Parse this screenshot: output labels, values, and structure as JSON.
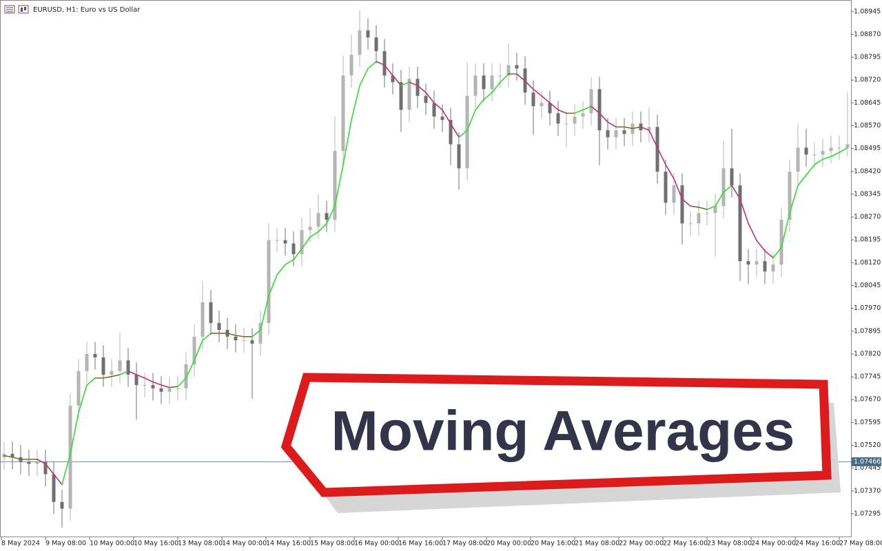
{
  "chart_data": {
    "type": "candlestick",
    "title": "EURUSD, H1:  Euro vs US Dollar",
    "annotation": "Moving Averages",
    "xlim": [
      0,
      308.25
    ],
    "ylim": [
      1.07218,
      1.08983
    ],
    "xticks": [
      {
        "value": 0,
        "label": "8 May 2024"
      },
      {
        "value": 16,
        "label": "9 May 08:00"
      },
      {
        "value": 32,
        "label": "10 May 00:00"
      },
      {
        "value": 48,
        "label": "10 May 16:00"
      },
      {
        "value": 64,
        "label": "13 May 08:00"
      },
      {
        "value": 80,
        "label": "14 May 00:00"
      },
      {
        "value": 96,
        "label": "14 May 16:00"
      },
      {
        "value": 112,
        "label": "15 May 08:00"
      },
      {
        "value": 128,
        "label": "16 May 00:00"
      },
      {
        "value": 144,
        "label": "16 May 16:00"
      },
      {
        "value": 160,
        "label": "17 May 08:00"
      },
      {
        "value": 176,
        "label": "20 May 00:00"
      },
      {
        "value": 192,
        "label": "20 May 16:00"
      },
      {
        "value": 208,
        "label": "21 May 08:00"
      },
      {
        "value": 224,
        "label": "22 May 00:00"
      },
      {
        "value": 240,
        "label": "22 May 16:00"
      },
      {
        "value": 256,
        "label": "23 May 08:00"
      },
      {
        "value": 272,
        "label": "24 May 00:00"
      },
      {
        "value": 288,
        "label": "24 May 16:00"
      },
      {
        "value": 304,
        "label": "27 May 08:00"
      }
    ],
    "yticks": [
      {
        "value": 1.08945,
        "label": "1.08945"
      },
      {
        "value": 1.0887,
        "label": "1.08870"
      },
      {
        "value": 1.08795,
        "label": "1.08795"
      },
      {
        "value": 1.0872,
        "label": "1.08720"
      },
      {
        "value": 1.08645,
        "label": "1.08645"
      },
      {
        "value": 1.0857,
        "label": "1.08570"
      },
      {
        "value": 1.08495,
        "label": "1.08495"
      },
      {
        "value": 1.0842,
        "label": "1.08420"
      },
      {
        "value": 1.08345,
        "label": "1.08345"
      },
      {
        "value": 1.0827,
        "label": "1.08270"
      },
      {
        "value": 1.08195,
        "label": "1.08195"
      },
      {
        "value": 1.0812,
        "label": "1.08120"
      },
      {
        "value": 1.08045,
        "label": "1.08045"
      },
      {
        "value": 1.0797,
        "label": "1.07970"
      },
      {
        "value": 1.07895,
        "label": "1.07895"
      },
      {
        "value": 1.0782,
        "label": "1.07820"
      },
      {
        "value": 1.07745,
        "label": "1.07745"
      },
      {
        "value": 1.0767,
        "label": "1.07670"
      },
      {
        "value": 1.07595,
        "label": "1.07595"
      },
      {
        "value": 1.0752,
        "label": "1.07520"
      },
      {
        "value": 1.07445,
        "label": "1.07445"
      },
      {
        "value": 1.0737,
        "label": "1.07370"
      },
      {
        "value": 1.07295,
        "label": "1.07295"
      }
    ],
    "current_price": 1.07466,
    "current_price_color": "#4a6a8a",
    "up_color": "#b4b4b4",
    "down_color": "#707070",
    "x": [
      1,
      4,
      7,
      10,
      13,
      16,
      19,
      22,
      25,
      28,
      31,
      34,
      37,
      40,
      43,
      46,
      49,
      52,
      55,
      58,
      61,
      64,
      67,
      70,
      73,
      76,
      79,
      82,
      85,
      88,
      91,
      94,
      97,
      100,
      103,
      106,
      109,
      112,
      115,
      118,
      121,
      124,
      127,
      130,
      133,
      136,
      139,
      142,
      145,
      148,
      151,
      154,
      157,
      160,
      163,
      166,
      169,
      172,
      175,
      178,
      181,
      184,
      187,
      190,
      193,
      196,
      199,
      202,
      205,
      208,
      211,
      214,
      217,
      220,
      223,
      226,
      229,
      232,
      235,
      238,
      241,
      244,
      247,
      250,
      253,
      256,
      259,
      262,
      265,
      268,
      271,
      274,
      277,
      280,
      283,
      286,
      289,
      292,
      295,
      298,
      301,
      304,
      307
    ],
    "open": [
      1.0748,
      1.07492,
      1.07481,
      1.07465,
      1.07459,
      1.07465,
      1.07425,
      1.07334,
      1.07312,
      1.0765,
      1.07764,
      1.0782,
      1.07809,
      1.07752,
      1.07764,
      1.07799,
      1.07752,
      1.07718,
      1.07718,
      1.07707,
      1.07696,
      1.07707,
      1.07707,
      1.07786,
      1.07877,
      1.0799,
      1.07922,
      1.07899,
      1.07877,
      1.07865,
      1.07865,
      1.07854,
      1.07922,
      1.08194,
      1.08194,
      1.08183,
      1.08148,
      1.08227,
      1.08238,
      1.08283,
      1.08261,
      1.08487,
      1.08735,
      1.08803,
      1.08883,
      1.0886,
      1.08815,
      1.08735,
      1.08713,
      1.08622,
      1.08724,
      1.08668,
      1.08645,
      1.086,
      1.08589,
      1.08509,
      1.0843,
      1.08668,
      1.08735,
      1.0869,
      1.08735,
      1.08735,
      1.08769,
      1.08758,
      1.08679,
      1.08634,
      1.08645,
      1.08611,
      1.08577,
      1.08577,
      1.086,
      1.08611,
      1.0869,
      1.08555,
      1.08532,
      1.08555,
      1.08543,
      1.08577,
      1.08555,
      1.08566,
      1.08419,
      1.08317,
      1.08374,
      1.08249,
      1.08249,
      1.08283,
      1.08283,
      1.08306,
      1.0843,
      1.08374,
      1.08125,
      1.08114,
      1.08125,
      1.08091,
      1.08114,
      1.08261,
      1.08419,
      1.08498,
      1.08475,
      1.08475,
      1.08487,
      1.08498,
      1.08498
    ],
    "high": [
      1.07532,
      1.07532,
      1.07521,
      1.07505,
      1.07505,
      1.07505,
      1.07465,
      1.07374,
      1.0769,
      1.07804,
      1.0786,
      1.0786,
      1.07849,
      1.07804,
      1.0789,
      1.07839,
      1.07792,
      1.07758,
      1.07758,
      1.07747,
      1.07747,
      1.07747,
      1.07826,
      1.07917,
      1.0806,
      1.0803,
      1.07962,
      1.07939,
      1.07917,
      1.07905,
      1.07905,
      1.07962,
      1.0825,
      1.08234,
      1.08234,
      1.08223,
      1.08267,
      1.083,
      1.08345,
      1.08323,
      1.086,
      1.088,
      1.0887,
      1.0895,
      1.08923,
      1.089,
      1.08855,
      1.08775,
      1.08753,
      1.08764,
      1.08764,
      1.08708,
      1.08685,
      1.0864,
      1.08629,
      1.08549,
      1.0878,
      1.08775,
      1.08775,
      1.08775,
      1.08775,
      1.0884,
      1.08809,
      1.08798,
      1.08719,
      1.08685,
      1.08685,
      1.08651,
      1.08617,
      1.0864,
      1.08651,
      1.0873,
      1.0873,
      1.08595,
      1.08595,
      1.08595,
      1.08617,
      1.08617,
      1.0863,
      1.08606,
      1.08459,
      1.08414,
      1.08414,
      1.08289,
      1.08323,
      1.08323,
      1.08346,
      1.0852,
      1.0856,
      1.08414,
      1.08165,
      1.08165,
      1.08165,
      1.08154,
      1.08301,
      1.08459,
      1.08575,
      1.0856,
      1.08515,
      1.08527,
      1.08538,
      1.08538,
      1.0868
    ],
    "low": [
      1.0744,
      1.07441,
      1.07425,
      1.07419,
      1.07419,
      1.07385,
      1.07294,
      1.0725,
      1.07272,
      1.0761,
      1.07724,
      1.07769,
      1.07712,
      1.07712,
      1.07724,
      1.07712,
      1.07605,
      1.07678,
      1.07667,
      1.07656,
      1.07656,
      1.07667,
      1.07667,
      1.07746,
      1.07837,
      1.07882,
      1.07859,
      1.07837,
      1.07825,
      1.07825,
      1.07673,
      1.07814,
      1.07882,
      1.08154,
      1.08143,
      1.08108,
      1.08108,
      1.08187,
      1.08198,
      1.08221,
      1.08221,
      1.08447,
      1.08695,
      1.08763,
      1.0882,
      1.08775,
      1.08695,
      1.08673,
      1.0855,
      1.08582,
      1.08628,
      1.08605,
      1.0856,
      1.08549,
      1.0844,
      1.0836,
      1.0839,
      1.08628,
      1.0865,
      1.0865,
      1.08695,
      1.08695,
      1.08718,
      1.08639,
      1.0854,
      1.08594,
      1.08571,
      1.08537,
      1.085,
      1.08537,
      1.0856,
      1.08571,
      1.0844,
      1.08492,
      1.08492,
      1.08503,
      1.08503,
      1.08515,
      1.08515,
      1.08379,
      1.08277,
      1.08277,
      1.0818,
      1.08209,
      1.08209,
      1.08243,
      1.0814,
      1.08266,
      1.08334,
      1.0806,
      1.0805,
      1.08074,
      1.08051,
      1.08051,
      1.08074,
      1.08221,
      1.08379,
      1.08435,
      1.08435,
      1.08435,
      1.08447,
      1.08458,
      1.08469
    ],
    "close": [
      1.07492,
      1.07481,
      1.07465,
      1.07459,
      1.07465,
      1.07425,
      1.07334,
      1.07312,
      1.0765,
      1.07764,
      1.0782,
      1.07809,
      1.07752,
      1.07764,
      1.07799,
      1.07752,
      1.07718,
      1.07718,
      1.07707,
      1.07696,
      1.07707,
      1.07707,
      1.07786,
      1.07877,
      1.0799,
      1.07922,
      1.07899,
      1.07877,
      1.07865,
      1.07865,
      1.07854,
      1.07922,
      1.08194,
      1.08194,
      1.08183,
      1.08148,
      1.08227,
      1.08238,
      1.08283,
      1.08261,
      1.08487,
      1.08735,
      1.08803,
      1.08883,
      1.0886,
      1.08815,
      1.08735,
      1.08713,
      1.08622,
      1.08724,
      1.08668,
      1.08645,
      1.086,
      1.08589,
      1.08509,
      1.0843,
      1.08668,
      1.08735,
      1.0869,
      1.08735,
      1.08735,
      1.08769,
      1.08758,
      1.08679,
      1.08634,
      1.08645,
      1.08611,
      1.08577,
      1.08577,
      1.086,
      1.08611,
      1.0869,
      1.08555,
      1.08532,
      1.08555,
      1.08543,
      1.08577,
      1.08555,
      1.08566,
      1.08419,
      1.08317,
      1.08374,
      1.08249,
      1.08249,
      1.08283,
      1.08283,
      1.08306,
      1.0843,
      1.08374,
      1.08125,
      1.08114,
      1.08125,
      1.08091,
      1.08114,
      1.08261,
      1.08419,
      1.08498,
      1.08475,
      1.08475,
      1.08487,
      1.08498,
      1.08498,
      1.08509
    ],
    "ma": {
      "up_color": "#2ee02e",
      "down_color": "#c8306c",
      "flat_color": "#7a6a30",
      "values": [
        1.07486,
        1.07481,
        1.07474,
        1.07474,
        1.07474,
        1.07459,
        1.07425,
        1.07391,
        1.07492,
        1.07628,
        1.07718,
        1.07741,
        1.07741,
        1.07746,
        1.07752,
        1.07764,
        1.07752,
        1.07741,
        1.07728,
        1.07718,
        1.0771,
        1.07713,
        1.07741,
        1.07799,
        1.07865,
        1.07888,
        1.07888,
        1.07888,
        1.07881,
        1.07877,
        1.07877,
        1.07899,
        1.08012,
        1.0808,
        1.08114,
        1.0813,
        1.08166,
        1.08204,
        1.08222,
        1.08249,
        1.08306,
        1.08442,
        1.08589,
        1.08702,
        1.08758,
        1.08781,
        1.08769,
        1.08735,
        1.08702,
        1.08713,
        1.08702,
        1.08679,
        1.08645,
        1.08622,
        1.08577,
        1.08532,
        1.08555,
        1.08622,
        1.08656,
        1.08679,
        1.08713,
        1.0874,
        1.0874,
        1.08717,
        1.0869,
        1.08668,
        1.08645,
        1.08622,
        1.08611,
        1.08611,
        1.08622,
        1.08634,
        1.08611,
        1.08582,
        1.08566,
        1.08566,
        1.08561,
        1.08566,
        1.08555,
        1.08498,
        1.08442,
        1.08396,
        1.08329,
        1.08306,
        1.08302,
        1.08295,
        1.08306,
        1.08351,
        1.08374,
        1.08329,
        1.08249,
        1.08193,
        1.08159,
        1.08136,
        1.0817,
        1.08283,
        1.08374,
        1.08408,
        1.08442,
        1.0846,
        1.08469,
        1.08482,
        1.08498
      ]
    }
  }
}
